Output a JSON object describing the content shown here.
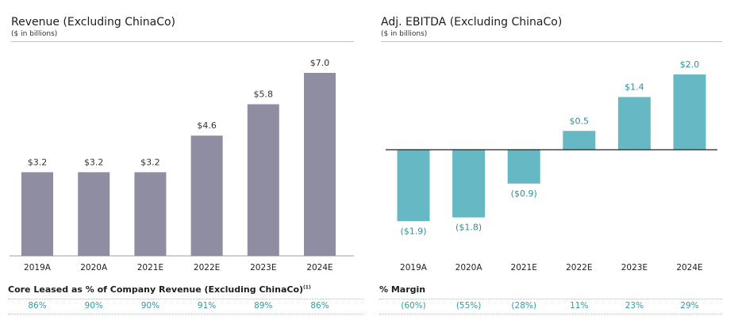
{
  "chart_data": [
    {
      "type": "bar",
      "title": "Revenue (Excluding ChinaCo)",
      "subtitle": "($ in billions)",
      "categories": [
        "2019A",
        "2020A",
        "2021E",
        "2022E",
        "2023E",
        "2024E"
      ],
      "values": [
        3.2,
        3.2,
        3.2,
        4.6,
        5.8,
        7.0
      ],
      "labels": [
        "$3.2",
        "$3.2",
        "$3.2",
        "$4.6",
        "$5.8",
        "$7.0"
      ],
      "ylim": [
        0,
        7.0
      ],
      "color": "#8e8da2",
      "grid": false,
      "metric": {
        "label": "Core Leased as % of Company Revenue (Excluding ChinaCo)",
        "footnote": "(1)",
        "values": [
          "86%",
          "90%",
          "90%",
          "91%",
          "89%",
          "86%"
        ]
      }
    },
    {
      "type": "bar",
      "title": "Adj. EBITDA (Excluding ChinaCo)",
      "subtitle": "($ in billions)",
      "categories": [
        "2019A",
        "2020A",
        "2021E",
        "2022E",
        "2023E",
        "2024E"
      ],
      "values": [
        -1.9,
        -1.8,
        -0.9,
        0.5,
        1.4,
        2.0
      ],
      "labels": [
        "($1.9)",
        "($1.8)",
        "($0.9)",
        "$0.5",
        "$1.4",
        "$2.0"
      ],
      "ylim": [
        -1.9,
        2.0
      ],
      "color": "#66b9c4",
      "grid": false,
      "metric": {
        "label": "% Margin",
        "values": [
          "(60%)",
          "(55%)",
          "(28%)",
          "11%",
          "23%",
          "29%"
        ]
      }
    }
  ]
}
